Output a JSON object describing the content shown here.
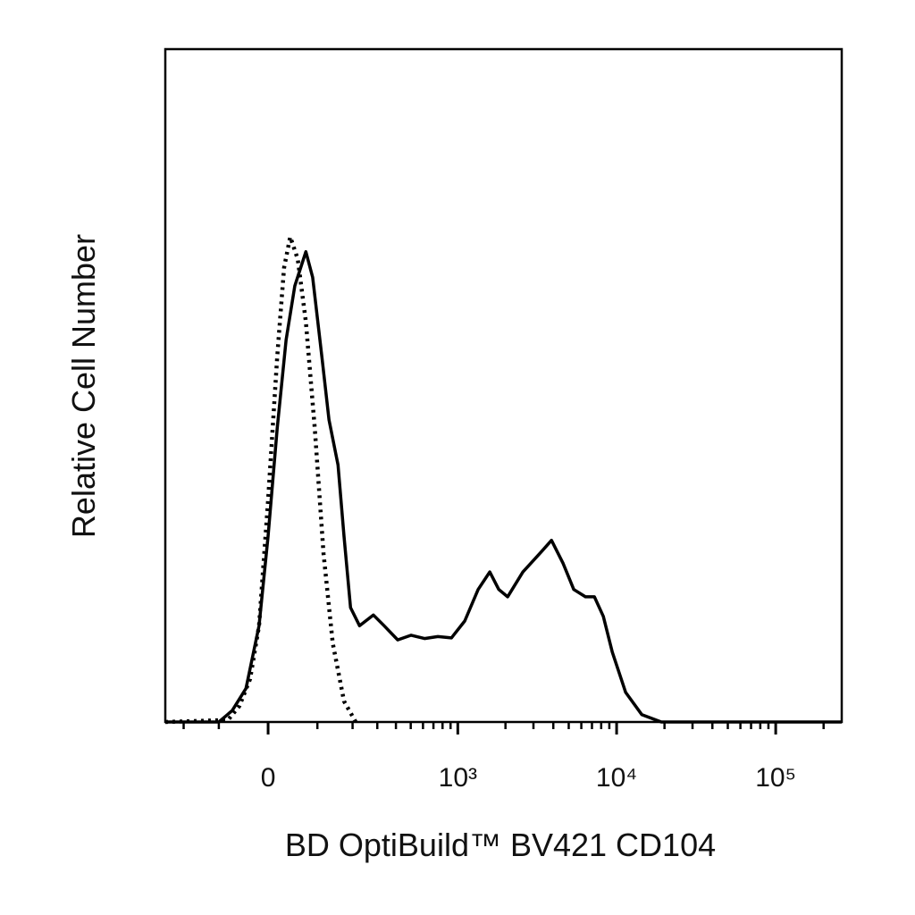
{
  "chart_data": {
    "type": "line",
    "x_label": "BD OptiBuild™ BV421 CD104",
    "y_label": "Relative Cell Number",
    "xscale": "asinh",
    "xlim": [
      -271,
      260000
    ],
    "ylim": [
      0,
      100
    ],
    "xticks": [
      0,
      {
        "value": 1000,
        "label": "10³"
      },
      {
        "value": 10000,
        "label": "10⁴"
      },
      {
        "value": 100000,
        "label": "10⁵"
      }
    ],
    "xminorticks": [
      -200,
      -100,
      100,
      200,
      300,
      400,
      500,
      600,
      700,
      800,
      900,
      2000,
      3000,
      4000,
      5000,
      6000,
      7000,
      8000,
      9000,
      20000,
      30000,
      40000,
      50000,
      60000,
      70000,
      80000,
      90000,
      200000
    ],
    "series": [
      {
        "color": "#000000",
        "dash": "solid",
        "x": [
          -271,
          -100,
          -70,
          -42,
          -17,
          0,
          17,
          34,
          51,
          74,
          89,
          111,
          129,
          154,
          172,
          193,
          225,
          282,
          334,
          411,
          503,
          614,
          747,
          911,
          1107,
          1345,
          1593,
          1815,
          2064,
          2574,
          3335,
          3896,
          4605,
          5379,
          6373,
          7250,
          8256,
          9391,
          11404,
          14396,
          19105,
          260000
        ],
        "values": [
          0,
          0,
          1.7,
          5.0,
          14.3,
          27.6,
          43.6,
          56.8,
          64.8,
          69.9,
          66.1,
          54.2,
          44.9,
          38.2,
          27.6,
          17.0,
          14.3,
          15.9,
          14.3,
          12.2,
          12.9,
          12.4,
          12.7,
          12.5,
          15.0,
          19.7,
          22.3,
          19.7,
          18.6,
          22.3,
          25.2,
          27.0,
          23.6,
          19.7,
          18.6,
          18.6,
          15.7,
          10.4,
          4.4,
          1.1,
          0,
          0
        ]
      },
      {
        "color": "#000000",
        "dash": "dotted",
        "x": [
          -271,
          -79,
          -55,
          -34,
          -17,
          0,
          17,
          30,
          42,
          57,
          74,
          94,
          115,
          139,
          172,
          211
        ],
        "values": [
          0,
          0.3,
          2.4,
          6.4,
          14.3,
          32.9,
          54.2,
          67.5,
          72.1,
          68.8,
          59.5,
          43.6,
          25.0,
          11.7,
          3.1,
          0
        ]
      }
    ]
  }
}
